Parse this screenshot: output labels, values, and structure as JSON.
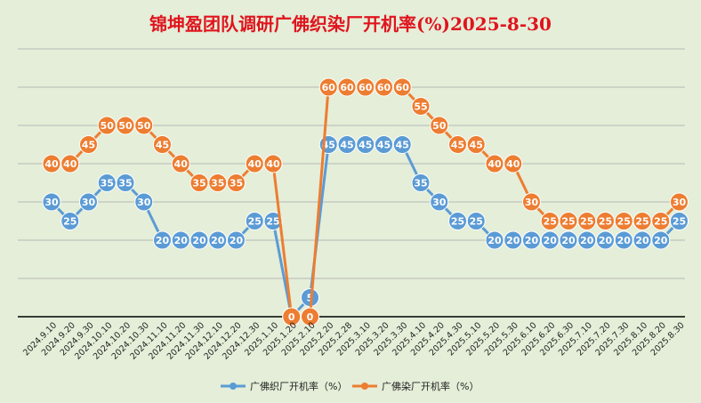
{
  "chart_data": {
    "type": "line",
    "title": "锦坤盈团队调研广佛织染厂开机率(%)2025-8-30",
    "xlabel": "",
    "ylabel": "",
    "ylim": [
      0,
      70
    ],
    "grid": true,
    "legend_position": "bottom",
    "categories": [
      "2024.9.10",
      "2024.9.20",
      "2024.9.30",
      "2024.10.10",
      "2024.10.20",
      "2024.10.30",
      "2024.11.10",
      "2024.11.20",
      "2024.11.30",
      "2024.12.10",
      "2024.12.20",
      "2024.12.30",
      "2025.1.10",
      "2025.1.20",
      "2025.2.10",
      "2025.2.20",
      "2025.2.28",
      "2025.3.10",
      "2025.3.20",
      "2025.3.30",
      "2025.4.10",
      "2025.4.20",
      "2025.4.30",
      "2025.5.10",
      "2025.5.20",
      "2025.5.30",
      "2025.6.10",
      "2025.6.20",
      "2025.6.30",
      "2025.7.10",
      "2025.7.20",
      "2025.7.30",
      "2025.8.10",
      "2025.8.20",
      "2025.8.30"
    ],
    "series": [
      {
        "name": "广佛织厂开机率（%）",
        "color": "#5b9bd5",
        "values": [
          30,
          25,
          30,
          35,
          35,
          30,
          20,
          20,
          20,
          20,
          20,
          25,
          25,
          0,
          5,
          45,
          45,
          45,
          45,
          45,
          35,
          30,
          25,
          25,
          20,
          20,
          20,
          20,
          20,
          20,
          20,
          20,
          20,
          20,
          25
        ]
      },
      {
        "name": "广佛染厂开机率（%）",
        "color": "#ed7d31",
        "values": [
          40,
          40,
          45,
          50,
          50,
          50,
          45,
          40,
          35,
          35,
          35,
          40,
          40,
          0,
          0,
          60,
          60,
          60,
          60,
          60,
          55,
          50,
          45,
          45,
          40,
          40,
          30,
          25,
          25,
          25,
          25,
          25,
          25,
          25,
          30
        ]
      }
    ]
  },
  "colors": {
    "background": "#e4eed8",
    "title": "#e0141e",
    "grid": "#b8b8b8",
    "axis": "#000000"
  }
}
